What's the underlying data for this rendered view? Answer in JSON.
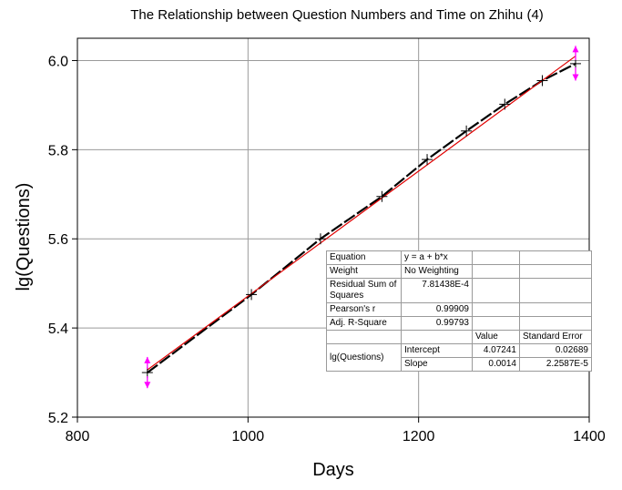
{
  "chart_data": {
    "type": "scatter",
    "title": "The Relationship between Question Numbers and Time on Zhihu (4)",
    "xlabel": "Days",
    "ylabel": "lg(Questions)",
    "xlim": [
      800,
      1400
    ],
    "ylim": [
      5.2,
      6.05
    ],
    "xticks": [
      800,
      1000,
      1200,
      1400
    ],
    "yticks": [
      5.2,
      5.4,
      5.6,
      5.8,
      6.0
    ],
    "xtick_labels": [
      "800",
      "1000",
      "1200",
      "1400"
    ],
    "ytick_labels": [
      "5.2",
      "5.4",
      "5.6",
      "5.8",
      "6.0"
    ],
    "grid": true,
    "series": [
      {
        "x": [
          882,
          1004,
          1085,
          1157,
          1210,
          1256,
          1301,
          1345,
          1384
        ],
        "y": [
          5.3,
          5.475,
          5.6,
          5.695,
          5.778,
          5.842,
          5.902,
          5.955,
          5.993
        ],
        "marker_color": "#000000",
        "errorbar_color": "#ff00ff"
      }
    ],
    "errorbars": [
      {
        "point_index": 0,
        "y_lower": 5.265,
        "y_upper": 5.335
      },
      {
        "point_index": 8,
        "y_lower": 5.955,
        "y_upper": 6.033
      }
    ],
    "fit_line": {
      "color": "#e00000",
      "x": [
        882,
        1384
      ],
      "y": [
        5.306,
        6.01
      ]
    },
    "connecting_line": {
      "color": "#000000",
      "style": "dashed"
    },
    "fit_table": {
      "equation_label": "Equation",
      "equation_value": "y = a + b*x",
      "weight_label": "Weight",
      "weight_value": "No Weighting",
      "rss_label": "Residual Sum of Squares",
      "rss_value": "7.81438E-4",
      "pearson_label": "Pearson's r",
      "pearson_value": "0.99909",
      "adjr_label": "Adj. R-Square",
      "adjr_value": "0.99793",
      "value_header": "Value",
      "stderr_header": "Standard Error",
      "dependent_label": "lg(Questions)",
      "intercept_label": "Intercept",
      "intercept_value": "4.07241",
      "intercept_error": "0.02689",
      "slope_label": "Slope",
      "slope_value": "0.0014",
      "slope_error": "2.2587E-5"
    }
  }
}
